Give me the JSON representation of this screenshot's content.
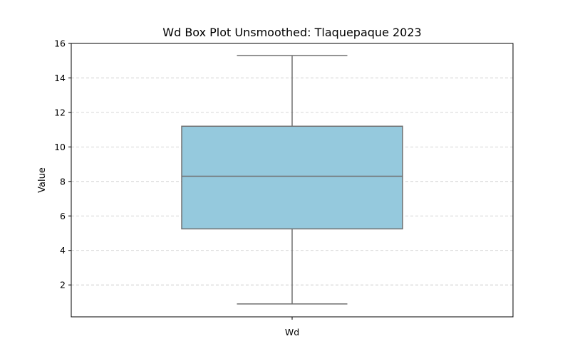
{
  "chart_data": {
    "type": "box",
    "title": "Wd Box Plot Unsmoothed: Tlaquepaque 2023",
    "xlabel": "",
    "ylabel": "Value",
    "categories": [
      "Wd"
    ],
    "boxes": [
      {
        "category": "Wd",
        "whisker_low": 0.9,
        "q1": 5.25,
        "median": 8.3,
        "q3": 11.2,
        "whisker_high": 15.3
      }
    ],
    "ylim": [
      0.15,
      16.0
    ],
    "yticks": [
      2,
      4,
      6,
      8,
      10,
      12,
      14,
      16
    ],
    "grid": {
      "y": true,
      "style": "dashed"
    },
    "colors": {
      "box_fill": "#95c9dd",
      "box_edge": "#707070",
      "grid": "#c8c8c8"
    }
  }
}
